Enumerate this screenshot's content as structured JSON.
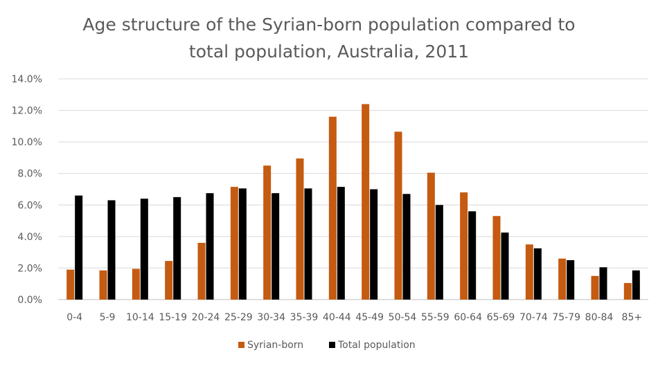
{
  "chart_data": {
    "type": "bar",
    "title_lines": [
      "Age structure of the Syrian-born population compared to",
      "total population, Australia, 2011"
    ],
    "categories": [
      "0-4",
      "5-9",
      "10-14",
      "15-19",
      "20-24",
      "25-29",
      "30-34",
      "35-39",
      "40-44",
      "45-49",
      "50-54",
      "55-59",
      "60-64",
      "65-69",
      "70-74",
      "75-79",
      "80-84",
      "85+"
    ],
    "series": [
      {
        "name": "Syrian-born",
        "color": "#C55A11",
        "values": [
          1.9,
          1.85,
          1.95,
          2.45,
          3.6,
          7.15,
          8.5,
          8.95,
          11.6,
          12.4,
          10.65,
          8.05,
          6.8,
          5.3,
          3.5,
          2.6,
          1.5,
          1.05
        ]
      },
      {
        "name": "Total population",
        "color": "#000000",
        "values": [
          6.6,
          6.3,
          6.4,
          6.5,
          6.75,
          7.05,
          6.75,
          7.05,
          7.15,
          7.0,
          6.7,
          6.0,
          5.6,
          4.25,
          3.25,
          2.5,
          2.05,
          1.85
        ]
      }
    ],
    "ylim": [
      0,
      14
    ],
    "yticks": [
      "0.0%",
      "2.0%",
      "4.0%",
      "6.0%",
      "8.0%",
      "10.0%",
      "12.0%",
      "14.0%"
    ],
    "ytick_values": [
      0,
      2,
      4,
      6,
      8,
      10,
      12,
      14
    ],
    "grid": true,
    "legend_position": "bottom-center",
    "xlabel": "",
    "ylabel": ""
  }
}
